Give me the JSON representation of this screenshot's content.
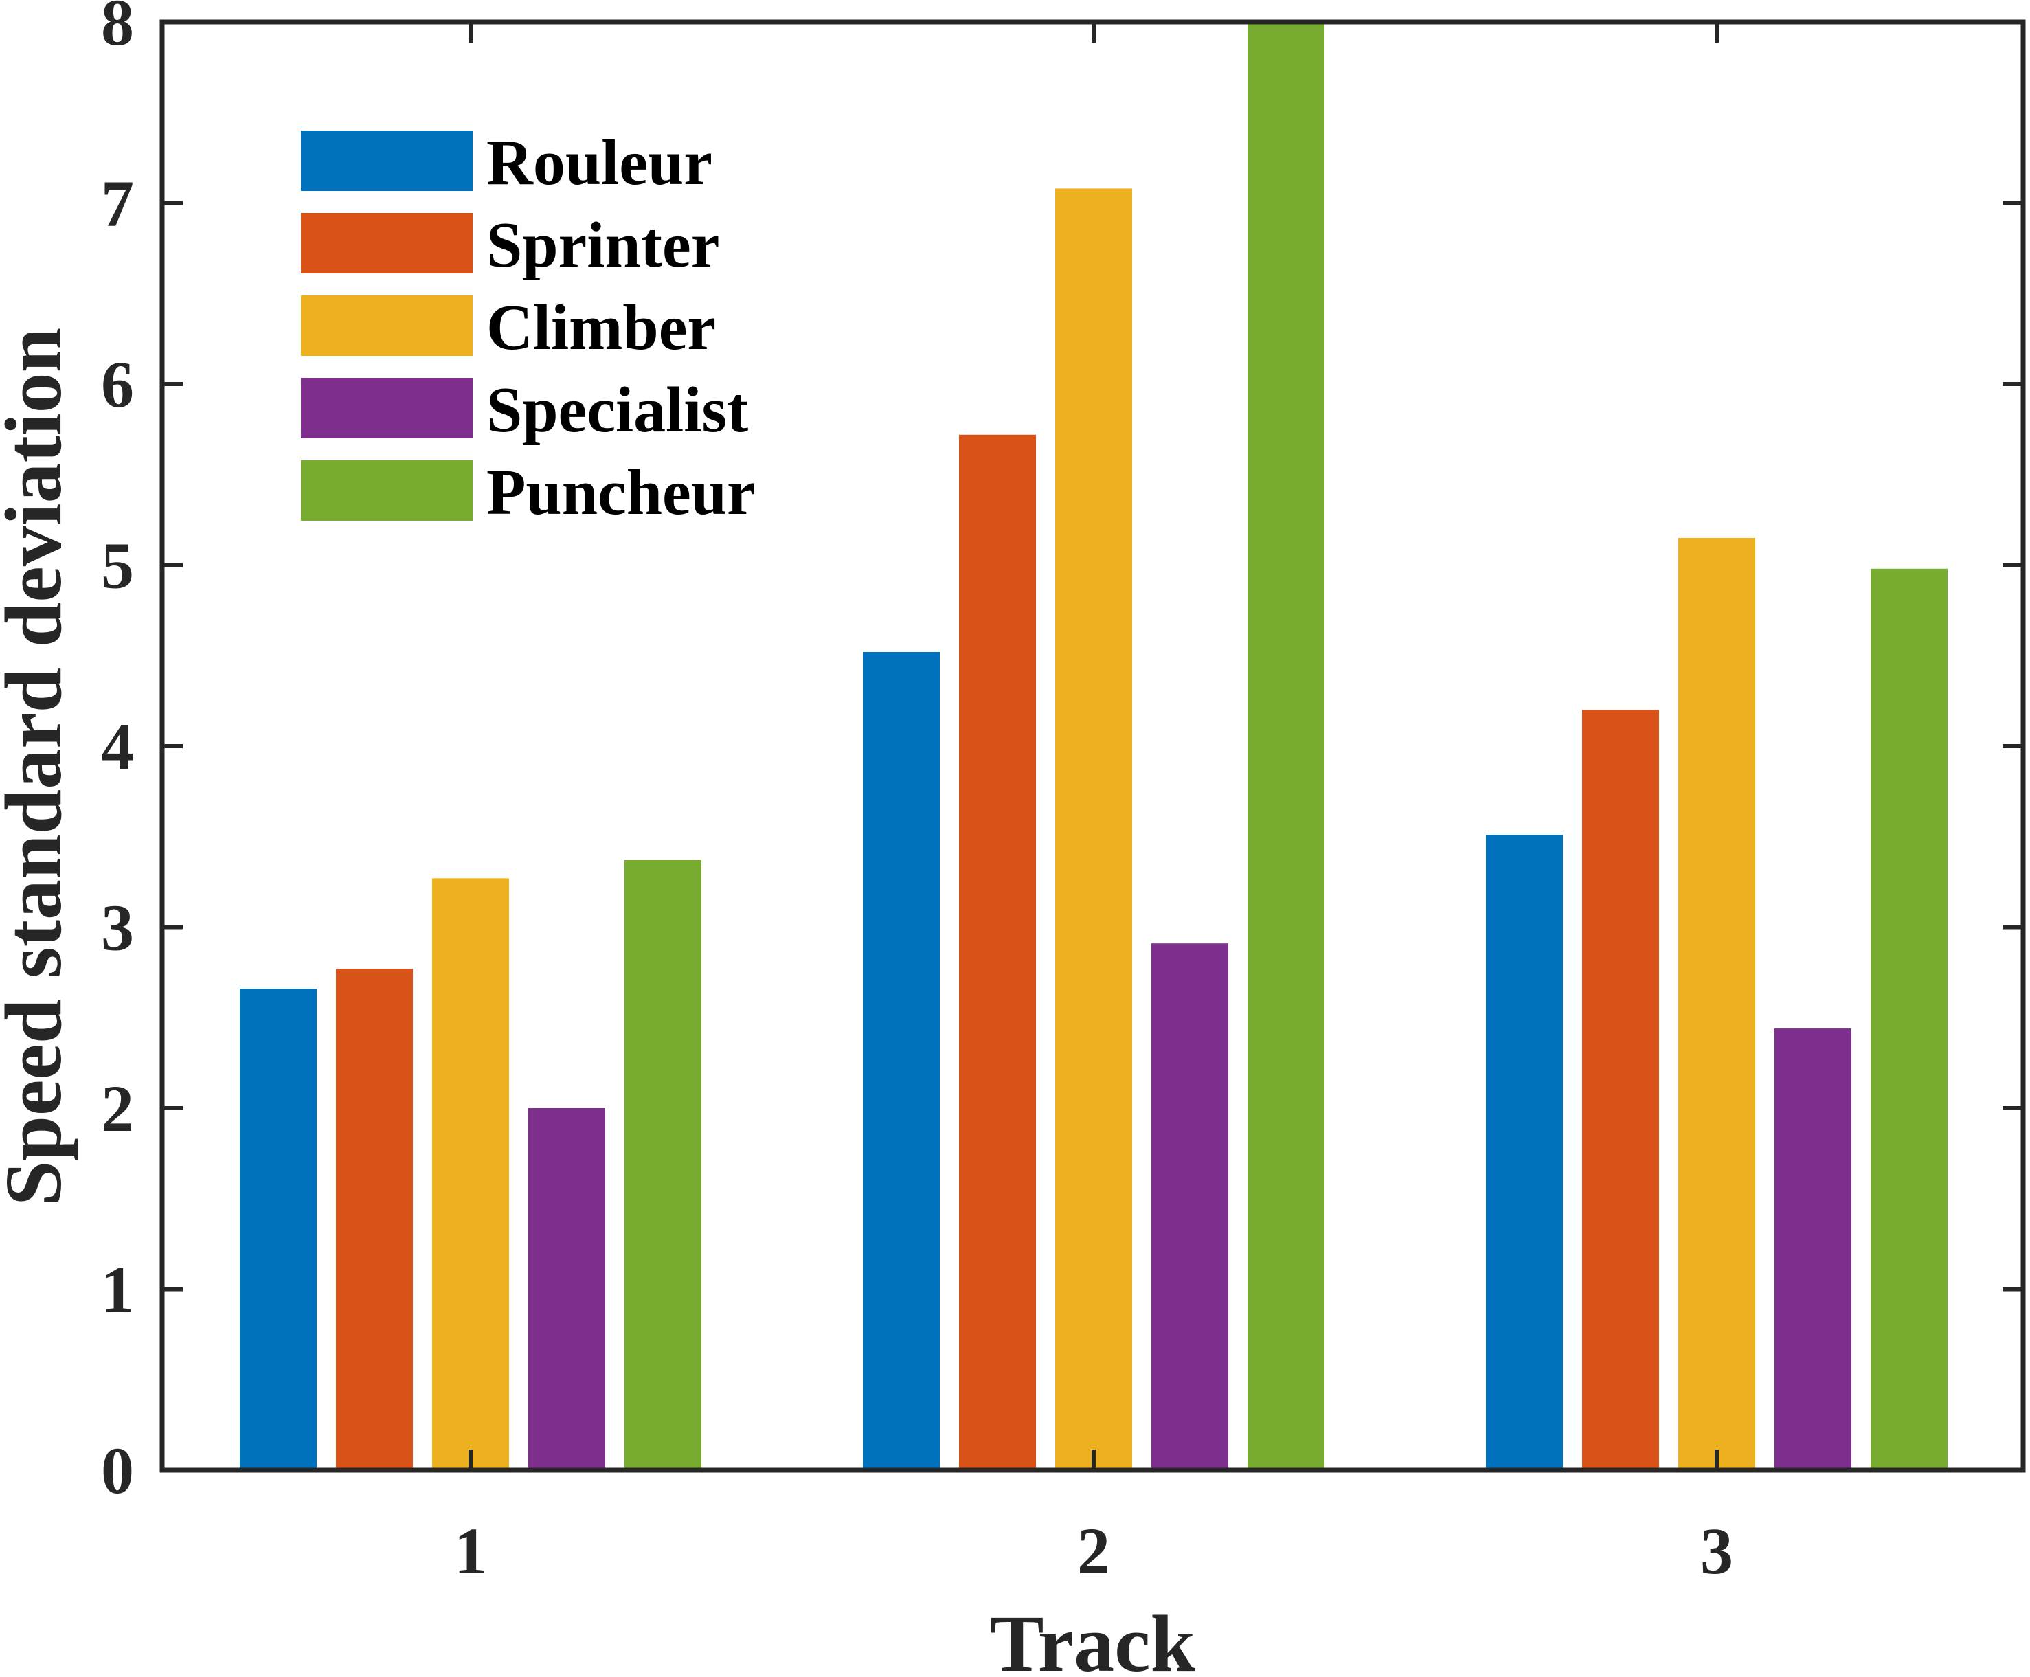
{
  "chart_data": {
    "type": "bar",
    "xlabel": "Track",
    "ylabel": "Speed standard deviation",
    "categories": [
      "1",
      "2",
      "3"
    ],
    "ylim": [
      0,
      8
    ],
    "yticks": [
      "0",
      "1",
      "2",
      "3",
      "4",
      "5",
      "6",
      "7",
      "8"
    ],
    "legend_position": "top-left",
    "grid": false,
    "series": [
      {
        "name": "Rouleur",
        "color": "#0072BD",
        "values": [
          2.66,
          4.52,
          3.51
        ]
      },
      {
        "name": "Sprinter",
        "color": "#D95319",
        "values": [
          2.77,
          5.72,
          4.2
        ]
      },
      {
        "name": "Climber",
        "color": "#EDB120",
        "values": [
          3.27,
          7.08,
          5.15
        ]
      },
      {
        "name": "Specialist",
        "color": "#7E2F8E",
        "values": [
          2.0,
          2.91,
          2.44
        ]
      },
      {
        "name": "Puncheur",
        "color": "#77AC30",
        "values": [
          3.37,
          8.0,
          4.98
        ]
      }
    ]
  }
}
